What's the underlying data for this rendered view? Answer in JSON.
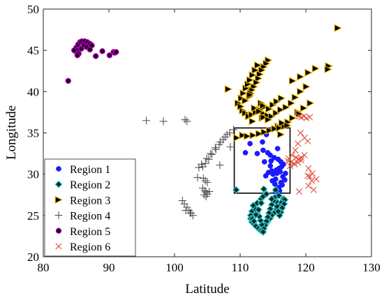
{
  "chart_data": {
    "type": "scatter",
    "xlabel": "Latitude",
    "ylabel": "Longitude",
    "xlim": [
      80,
      130
    ],
    "ylim": [
      20,
      50
    ],
    "xticks": [
      80,
      90,
      100,
      110,
      120,
      130
    ],
    "yticks": [
      20,
      25,
      30,
      35,
      40,
      45,
      50
    ],
    "grid": false,
    "legend_position": "bottom-left",
    "highlight_box": {
      "x": [
        109.1,
        117.6
      ],
      "y": [
        27.7,
        35.6
      ]
    },
    "series": [
      {
        "name": "Region 1",
        "marker": "circle",
        "color": "#1a1aff",
        "x": [
          110.8,
          112.6,
          111.5,
          113.4,
          114.0,
          113.5,
          114.2,
          114.6,
          115.2,
          115.8,
          116.2,
          116.6,
          116.3,
          115.9,
          115.5,
          114.8,
          114.3,
          113.9,
          114.6,
          115.0,
          115.6,
          116.1,
          116.5,
          116.8,
          116.2,
          115.4,
          114.9,
          115.3,
          115.9,
          116.4,
          116.0,
          115.4,
          114.7,
          113.7,
          115.7,
          116.9
        ],
        "y": [
          32.6,
          32.5,
          33.7,
          33.9,
          34.8,
          32.9,
          32.6,
          32.3,
          32.0,
          31.8,
          31.5,
          31.2,
          30.9,
          30.7,
          30.5,
          30.4,
          30.2,
          29.8,
          31.0,
          30.0,
          30.1,
          30.3,
          29.7,
          29.3,
          29.0,
          29.4,
          29.2,
          28.8,
          28.4,
          28.7,
          28.0,
          27.9,
          31.6,
          31.5,
          33.1,
          30.1
        ]
      },
      {
        "name": "Region 2",
        "marker": "diamond",
        "color": "#1a9090",
        "x": [
          109.4,
          113.6,
          113.2,
          112.6,
          112.2,
          111.8,
          111.6,
          111.6,
          111.8,
          112.1,
          112.4,
          112.8,
          113.1,
          113.3,
          113.6,
          113.9,
          114.2,
          114.6,
          114.9,
          115.3,
          115.6,
          116.0,
          116.3,
          116.6,
          116.8,
          116.7,
          116.4,
          116.2,
          116.0,
          115.8,
          115.6,
          115.5,
          115.3,
          115.1,
          114.8,
          114.6,
          114.4,
          114.2,
          114.0,
          113.8,
          113.6,
          113.5,
          113.3,
          113.1,
          112.9,
          112.6,
          112.3,
          112.0,
          111.9,
          112.1,
          112.4,
          112.8,
          113.2,
          113.5,
          114.0,
          114.8,
          115.4,
          115.9
        ],
        "y": [
          28.1,
          28.2,
          27.0,
          26.5,
          26.0,
          25.5,
          25.0,
          24.6,
          24.2,
          24.0,
          23.7,
          23.4,
          23.2,
          23.3,
          23.6,
          24.0,
          24.3,
          24.7,
          25.1,
          25.4,
          25.8,
          26.2,
          26.6,
          27.0,
          26.9,
          26.4,
          25.9,
          25.4,
          25.0,
          25.5,
          26.1,
          26.7,
          27.2,
          26.8,
          26.3,
          25.8,
          25.3,
          24.8,
          24.3,
          23.8,
          23.4,
          23.0,
          23.9,
          24.4,
          24.9,
          25.4,
          25.8,
          26.2,
          24.6,
          24.3,
          25.1,
          25.7,
          26.5,
          27.3,
          27.6,
          27.0,
          28.1,
          27.4
        ]
      },
      {
        "name": "Region 3",
        "marker": "triangle-right",
        "color": "#e8b800",
        "x": [
          124.9,
          123.5,
          123.4,
          114.3,
          114.0,
          113.6,
          113.3,
          113.0,
          112.8,
          112.5,
          112.1,
          111.8,
          111.6,
          111.4,
          108.2,
          109.7,
          110.2,
          110.5,
          110.9,
          111.2,
          111.5,
          111.9,
          112.3,
          112.7,
          113.2,
          113.8,
          114.4,
          115.0,
          115.6,
          116.3,
          110.4,
          110.8,
          111.3,
          111.8,
          112.4,
          113.0,
          113.5,
          114.2,
          114.8,
          115.5,
          116.2,
          117.0,
          117.8,
          118.4,
          119.2,
          120.1,
          115.8,
          116.5,
          117.3,
          118.0,
          118.8,
          119.7,
          120.7,
          116.2,
          110.4,
          111.1,
          112.0,
          112.9,
          113.7,
          114.5,
          115.3,
          116.0,
          116.8,
          113.4,
          113.5,
          118.0,
          119.2,
          120.4,
          121.5,
          111.9,
          109.5,
          110.1,
          110.8,
          111.5,
          112.2,
          112.9,
          113.6,
          114.3,
          116.4,
          117.2,
          119.0
        ],
        "y": [
          47.7,
          43.1,
          42.7,
          43.8,
          43.4,
          43.0,
          42.6,
          42.1,
          41.6,
          41.1,
          40.6,
          40.2,
          39.8,
          39.4,
          40.3,
          38.6,
          39.2,
          39.8,
          40.4,
          40.9,
          41.4,
          42.0,
          42.6,
          43.2,
          38.6,
          38.2,
          37.9,
          38.4,
          38.8,
          39.2,
          37.7,
          37.4,
          37.0,
          37.2,
          37.5,
          37.8,
          37.4,
          37.1,
          37.0,
          37.4,
          37.8,
          38.1,
          38.6,
          39.3,
          40.0,
          40.6,
          35.8,
          36.0,
          36.3,
          36.8,
          37.5,
          38.0,
          38.6,
          34.8,
          34.7,
          34.6,
          34.7,
          34.9,
          35.1,
          35.3,
          35.5,
          35.6,
          35.8,
          36.8,
          38.3,
          41.3,
          41.8,
          42.3,
          42.8,
          36.4,
          34.4,
          38.2,
          38.9,
          39.6,
          38.0,
          37.6,
          36.9,
          36.6,
          36.2,
          35.9,
          37.3
        ]
      },
      {
        "name": "Region 4",
        "marker": "plus",
        "color": "#555555",
        "x": [
          95.7,
          98.3,
          101.6,
          101.9,
          103.7,
          101.5,
          101.9,
          102.2,
          102.5,
          102.8,
          101.2,
          101.7,
          102.4,
          104.3,
          104.6,
          104.8,
          105.0,
          104.3,
          104.7,
          105.2,
          105.7,
          106.3,
          106.8,
          107.4,
          108.0,
          104.1,
          104.9,
          105.5,
          106.2,
          107.0,
          107.7,
          108.4,
          109.0,
          104.4,
          104.7,
          105.0,
          104.5,
          104.8,
          105.3,
          108.5,
          106.9,
          103.5
        ],
        "y": [
          36.5,
          36.4,
          36.6,
          36.4,
          30.8,
          26.4,
          26.0,
          25.6,
          25.3,
          25.0,
          26.8,
          25.6,
          25.3,
          28.3,
          28.0,
          27.8,
          27.6,
          30.9,
          31.3,
          31.8,
          32.4,
          33.0,
          33.6,
          34.2,
          34.8,
          31.2,
          31.9,
          32.5,
          33.2,
          33.9,
          34.5,
          35.0,
          35.4,
          29.5,
          29.2,
          29.0,
          27.5,
          27.3,
          27.9,
          33.3,
          31.1,
          29.6
        ]
      },
      {
        "name": "Region 5",
        "marker": "circle",
        "color": "#2a0030",
        "edgecolor": "#b000b0",
        "x": [
          83.8,
          84.9,
          85.0,
          85.3,
          85.6,
          85.9,
          86.3,
          86.7,
          87.1,
          87.4,
          85.1,
          85.4,
          85.8,
          86.2,
          86.6,
          87.1,
          88.0,
          89.0,
          90.1,
          90.7,
          90.9,
          91.1,
          84.7,
          85.2
        ],
        "y": [
          41.3,
          44.9,
          45.3,
          45.7,
          46.0,
          46.1,
          46.1,
          46.0,
          45.8,
          45.6,
          45.0,
          44.6,
          45.2,
          45.6,
          45.4,
          45.1,
          44.3,
          44.9,
          44.4,
          44.8,
          44.7,
          44.8,
          45.0,
          44.4
        ]
      },
      {
        "name": "Region 6",
        "marker": "x",
        "color": "#e05040",
        "x": [
          119.0,
          119.3,
          119.7,
          120.1,
          120.6,
          119.2,
          119.8,
          120.3,
          118.8,
          118.4,
          117.9,
          117.4,
          117.8,
          118.3,
          118.8,
          119.3,
          119.8,
          120.4,
          121.0,
          121.6,
          120.6,
          120.9,
          120.4,
          117.6,
          118.2,
          118.9,
          119.3,
          120.3,
          121.2,
          119.0,
          117.3,
          118.5
        ],
        "y": [
          37.0,
          36.9,
          37.0,
          36.8,
          36.9,
          35.0,
          34.4,
          34.0,
          33.7,
          32.9,
          32.3,
          31.9,
          31.5,
          31.2,
          31.4,
          32.0,
          32.3,
          30.7,
          30.1,
          29.4,
          29.7,
          29.2,
          28.6,
          31.0,
          31.3,
          31.8,
          31.7,
          29.8,
          28.1,
          27.9,
          31.6,
          32.0
        ]
      }
    ]
  }
}
